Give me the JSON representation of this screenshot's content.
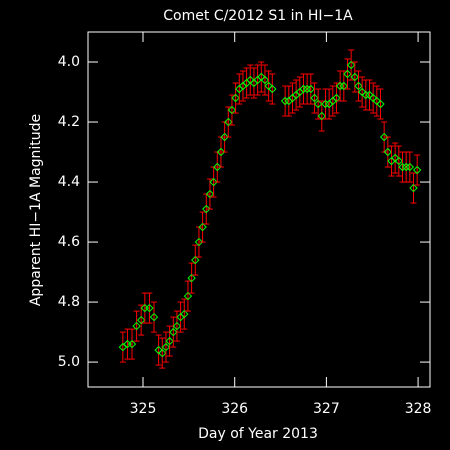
{
  "chart_data": {
    "type": "scatter",
    "title": "Comet C/2012 S1 in HI−1A",
    "xlabel": "Day of Year 2013",
    "ylabel": "Apparent HI−1A Magnitude",
    "x": [
      324.78,
      324.83,
      324.88,
      324.93,
      324.98,
      325.02,
      325.07,
      325.12,
      325.17,
      325.21,
      325.25,
      325.29,
      325.33,
      325.37,
      325.41,
      325.45,
      325.49,
      325.53,
      325.57,
      325.61,
      325.65,
      325.69,
      325.73,
      325.77,
      325.81,
      325.85,
      325.89,
      325.93,
      325.97,
      326.01,
      326.05,
      326.09,
      326.13,
      326.17,
      326.21,
      326.25,
      326.29,
      326.33,
      326.37,
      326.41,
      326.55,
      326.59,
      326.63,
      326.67,
      326.71,
      326.75,
      326.79,
      326.83,
      326.87,
      326.91,
      326.95,
      326.99,
      327.03,
      327.07,
      327.11,
      327.15,
      327.19,
      327.23,
      327.27,
      327.31,
      327.35,
      327.39,
      327.43,
      327.47,
      327.51,
      327.55,
      327.59,
      327.63,
      327.67,
      327.71,
      327.75,
      327.79,
      327.83,
      327.87,
      327.91,
      327.95,
      327.99
    ],
    "values": [
      4.95,
      4.94,
      4.94,
      4.88,
      4.86,
      4.82,
      4.82,
      4.85,
      4.96,
      4.97,
      4.95,
      4.93,
      4.9,
      4.88,
      4.85,
      4.84,
      4.78,
      4.72,
      4.66,
      4.6,
      4.55,
      4.49,
      4.44,
      4.4,
      4.35,
      4.3,
      4.25,
      4.2,
      4.16,
      4.12,
      4.09,
      4.08,
      4.07,
      4.06,
      4.07,
      4.06,
      4.05,
      4.06,
      4.08,
      4.09,
      4.13,
      4.13,
      4.12,
      4.11,
      4.1,
      4.09,
      4.09,
      4.09,
      4.12,
      4.14,
      4.18,
      4.14,
      4.14,
      4.13,
      4.12,
      4.08,
      4.08,
      4.04,
      4.01,
      4.05,
      4.08,
      4.1,
      4.11,
      4.11,
      4.12,
      4.13,
      4.14,
      4.25,
      4.3,
      4.33,
      4.32,
      4.33,
      4.35,
      4.35,
      4.35,
      4.42,
      4.36
    ],
    "yerr": 0.05,
    "marker_color": "#00ff00",
    "error_color": "#ff0000",
    "xlim": [
      324.4,
      328.13
    ],
    "xticks": [
      325,
      326,
      327,
      328
    ],
    "ylim": [
      3.9,
      5.083
    ],
    "y_inverted": true,
    "yticks": [
      {
        "value": 4,
        "label": "4.0"
      },
      4.2,
      4.4,
      4.6,
      4.8,
      {
        "value": 5,
        "label": "5.0"
      }
    ]
  }
}
